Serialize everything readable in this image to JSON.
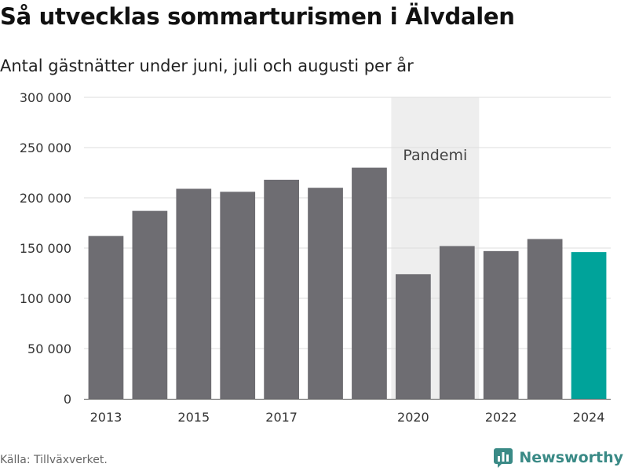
{
  "header": {
    "title": "Så utvecklas sommarturismen i Älvdalen",
    "subtitle": "Antal gästnätter under juni, juli och augusti per år"
  },
  "footer": {
    "source": "Källa: Tillväxverket.",
    "brand": "Newsworthy",
    "brand_icon": "chart-logo-icon"
  },
  "colors": {
    "bar": "#6e6d72",
    "highlight": "#00a39a",
    "band": "#eeeeee",
    "grid": "#dddddd",
    "brand": "#3a8a86"
  },
  "chart_data": {
    "type": "bar",
    "x": [
      2013,
      2014,
      2015,
      2016,
      2017,
      2018,
      2019,
      2020,
      2021,
      2022,
      2023,
      2024
    ],
    "values": [
      162000,
      187000,
      209000,
      206000,
      218000,
      210000,
      230000,
      124000,
      152000,
      147000,
      159000,
      146000
    ],
    "highlight": [
      2024
    ],
    "xticks": [
      2013,
      2015,
      2017,
      2020,
      2022,
      2024
    ],
    "xtick_labels": [
      "2013",
      "2015",
      "2017",
      "2020",
      "2022",
      "2024"
    ],
    "yticks": [
      0,
      50000,
      100000,
      150000,
      200000,
      250000,
      300000
    ],
    "ytick_labels": [
      "0",
      "50 000",
      "100 000",
      "150 000",
      "200 000",
      "250 000",
      "300 000"
    ],
    "ylim": [
      0,
      300000
    ],
    "grid": true,
    "annotations": [
      {
        "label": "Pandemi",
        "x_start": 2019.5,
        "x_end": 2021.5
      }
    ]
  }
}
